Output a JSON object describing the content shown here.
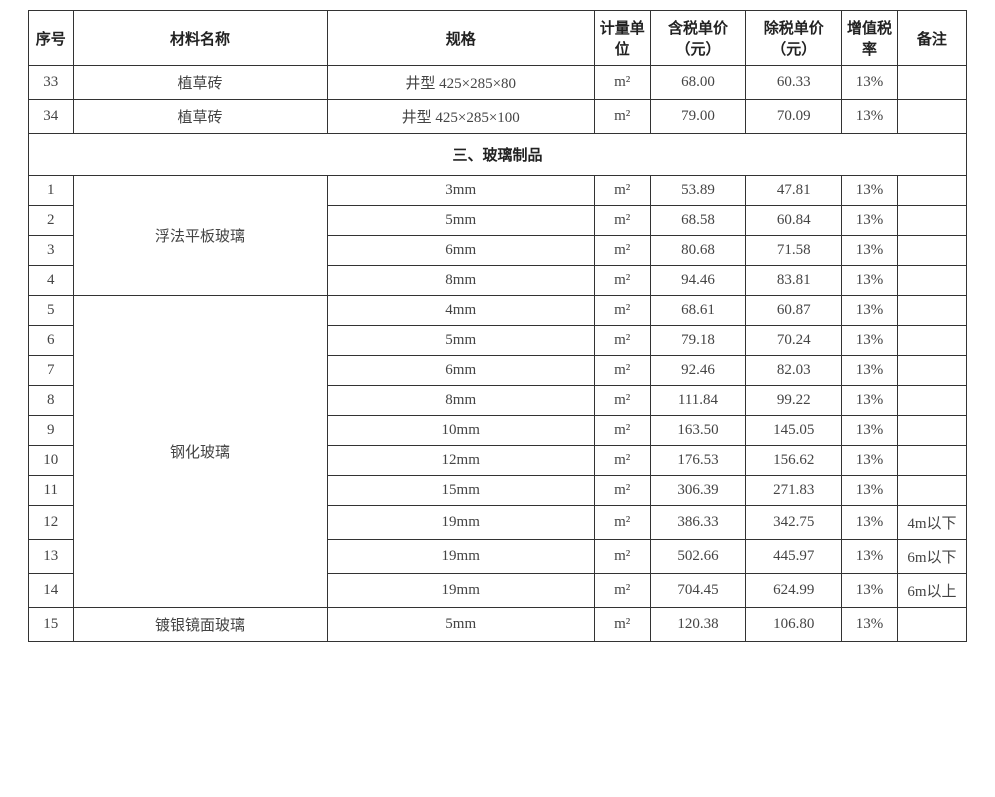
{
  "table": {
    "headers": {
      "seq": "序号",
      "name": "材料名称",
      "spec": "规格",
      "unit": "计量单位",
      "price_tax": "含税单价（元）",
      "price_notax": "除税单价（元）",
      "vat": "增值税率",
      "note": "备注"
    },
    "section_title": "三、玻璃制品",
    "pre_rows": [
      {
        "seq": "33",
        "name": "植草砖",
        "spec": "井型 425×285×80",
        "unit": "m²",
        "p1": "68.00",
        "p2": "60.33",
        "vat": "13%",
        "note": ""
      },
      {
        "seq": "34",
        "name": "植草砖",
        "spec": "井型 425×285×100",
        "unit": "m²",
        "p1": "79.00",
        "p2": "70.09",
        "vat": "13%",
        "note": ""
      }
    ],
    "groups": [
      {
        "name": "浮法平板玻璃",
        "rows": [
          {
            "seq": "1",
            "spec": "3mm",
            "unit": "m²",
            "p1": "53.89",
            "p2": "47.81",
            "vat": "13%",
            "note": ""
          },
          {
            "seq": "2",
            "spec": "5mm",
            "unit": "m²",
            "p1": "68.58",
            "p2": "60.84",
            "vat": "13%",
            "note": ""
          },
          {
            "seq": "3",
            "spec": "6mm",
            "unit": "m²",
            "p1": "80.68",
            "p2": "71.58",
            "vat": "13%",
            "note": ""
          },
          {
            "seq": "4",
            "spec": "8mm",
            "unit": "m²",
            "p1": "94.46",
            "p2": "83.81",
            "vat": "13%",
            "note": ""
          }
        ]
      },
      {
        "name": "钢化玻璃",
        "rows": [
          {
            "seq": "5",
            "spec": "4mm",
            "unit": "m²",
            "p1": "68.61",
            "p2": "60.87",
            "vat": "13%",
            "note": ""
          },
          {
            "seq": "6",
            "spec": "5mm",
            "unit": "m²",
            "p1": "79.18",
            "p2": "70.24",
            "vat": "13%",
            "note": ""
          },
          {
            "seq": "7",
            "spec": "6mm",
            "unit": "m²",
            "p1": "92.46",
            "p2": "82.03",
            "vat": "13%",
            "note": ""
          },
          {
            "seq": "8",
            "spec": "8mm",
            "unit": "m²",
            "p1": "111.84",
            "p2": "99.22",
            "vat": "13%",
            "note": ""
          },
          {
            "seq": "9",
            "spec": "10mm",
            "unit": "m²",
            "p1": "163.50",
            "p2": "145.05",
            "vat": "13%",
            "note": ""
          },
          {
            "seq": "10",
            "spec": "12mm",
            "unit": "m²",
            "p1": "176.53",
            "p2": "156.62",
            "vat": "13%",
            "note": ""
          },
          {
            "seq": "11",
            "spec": "15mm",
            "unit": "m²",
            "p1": "306.39",
            "p2": "271.83",
            "vat": "13%",
            "note": ""
          },
          {
            "seq": "12",
            "spec": "19mm",
            "unit": "m²",
            "p1": "386.33",
            "p2": "342.75",
            "vat": "13%",
            "note": "4m以下"
          },
          {
            "seq": "13",
            "spec": "19mm",
            "unit": "m²",
            "p1": "502.66",
            "p2": "445.97",
            "vat": "13%",
            "note": "6m以下"
          },
          {
            "seq": "14",
            "spec": "19mm",
            "unit": "m²",
            "p1": "704.45",
            "p2": "624.99",
            "vat": "13%",
            "note": "6m以上"
          }
        ]
      },
      {
        "name": "镀银镜面玻璃",
        "rows": [
          {
            "seq": "15",
            "spec": "5mm",
            "unit": "m²",
            "p1": "120.38",
            "p2": "106.80",
            "vat": "13%",
            "note": ""
          }
        ]
      }
    ]
  }
}
